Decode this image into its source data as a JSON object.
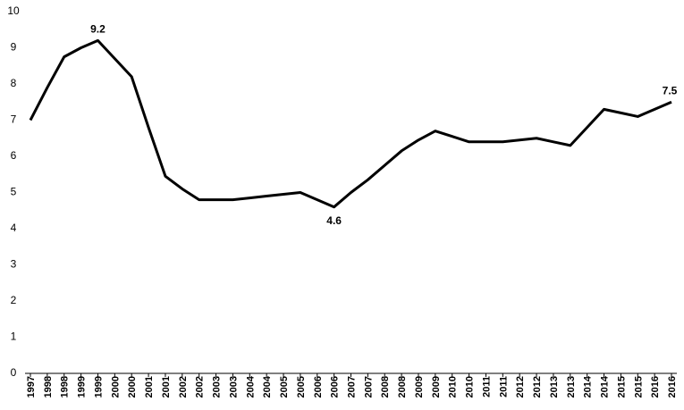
{
  "chart_data": {
    "type": "line",
    "categories": [
      "1997",
      "1998",
      "1998",
      "1999",
      "1999",
      "2000",
      "2000",
      "2001",
      "2001",
      "2002",
      "2002",
      "2003",
      "2003",
      "2004",
      "2004",
      "2005",
      "2005",
      "2006",
      "2006",
      "2007",
      "2007",
      "2008",
      "2008",
      "2009",
      "2009",
      "2010",
      "2010",
      "2011",
      "2011",
      "2012",
      "2012",
      "2013",
      "2013",
      "2014",
      "2014",
      "2015",
      "2015",
      "2016",
      "2016"
    ],
    "values": [
      7.0,
      7.9,
      8.75,
      9.0,
      9.2,
      8.7,
      8.2,
      6.8,
      5.45,
      5.1,
      4.8,
      4.8,
      4.8,
      4.85,
      4.9,
      4.95,
      5.0,
      4.8,
      4.6,
      5.0,
      5.35,
      5.75,
      6.15,
      6.45,
      6.7,
      6.55,
      6.4,
      6.4,
      6.4,
      6.45,
      6.5,
      6.4,
      6.3,
      6.8,
      7.3,
      7.2,
      7.1,
      7.3,
      7.5
    ],
    "value_labels": [
      null,
      null,
      null,
      null,
      "9.2",
      null,
      null,
      null,
      null,
      null,
      null,
      null,
      null,
      null,
      null,
      null,
      null,
      null,
      "4.6",
      null,
      null,
      null,
      null,
      null,
      null,
      null,
      null,
      null,
      null,
      null,
      null,
      null,
      null,
      null,
      null,
      null,
      null,
      null,
      "7.5"
    ],
    "color": "#000000",
    "ylim": [
      0,
      10
    ],
    "yticks": [
      0,
      1,
      2,
      3,
      4,
      5,
      6,
      7,
      8,
      9,
      10
    ],
    "grid": false
  }
}
